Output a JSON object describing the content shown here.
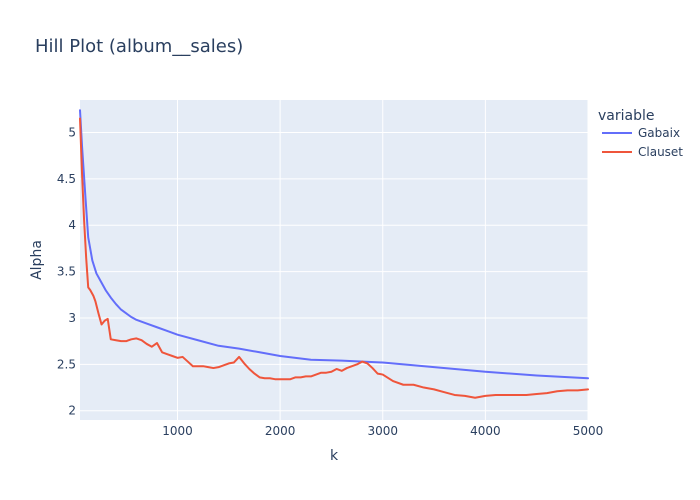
{
  "chart_data": {
    "type": "line",
    "title": "Hill Plot (album__sales)",
    "xlabel": "k",
    "ylabel": "Alpha",
    "xlim": [
      50,
      5000
    ],
    "ylim": [
      1.9,
      5.35
    ],
    "xticks": [
      1000,
      2000,
      3000,
      4000,
      5000
    ],
    "xtick_labels": [
      "1000",
      "2000",
      "3000",
      "4000",
      "5000"
    ],
    "yticks": [
      2,
      2.5,
      3,
      3.5,
      4,
      4.5,
      5
    ],
    "ytick_labels": [
      "2",
      "2.5",
      "3",
      "3.5",
      "4",
      "4.5",
      "5"
    ],
    "grid": true,
    "legend": {
      "title": "variable",
      "placement": "right"
    },
    "series": [
      {
        "name": "Gabaix",
        "color": "#636efa",
        "x": [
          50,
          70,
          100,
          130,
          170,
          210,
          250,
          300,
          350,
          400,
          450,
          500,
          550,
          600,
          700,
          800,
          900,
          1000,
          1200,
          1400,
          1600,
          1800,
          2000,
          2300,
          2600,
          3000,
          3500,
          4000,
          4500,
          5000
        ],
        "y": [
          5.24,
          4.85,
          4.35,
          3.87,
          3.62,
          3.48,
          3.4,
          3.3,
          3.22,
          3.15,
          3.09,
          3.05,
          3.01,
          2.98,
          2.94,
          2.9,
          2.86,
          2.82,
          2.76,
          2.7,
          2.67,
          2.63,
          2.59,
          2.55,
          2.54,
          2.52,
          2.47,
          2.42,
          2.38,
          2.35
        ]
      },
      {
        "name": "Clauset",
        "color": "#ef553b",
        "x": [
          50,
          70,
          90,
          110,
          130,
          150,
          180,
          200,
          230,
          260,
          290,
          320,
          350,
          400,
          450,
          500,
          550,
          600,
          650,
          700,
          750,
          800,
          850,
          900,
          950,
          1000,
          1050,
          1100,
          1150,
          1200,
          1250,
          1300,
          1350,
          1400,
          1450,
          1500,
          1550,
          1600,
          1650,
          1700,
          1750,
          1800,
          1850,
          1900,
          1950,
          2000,
          2050,
          2100,
          2150,
          2200,
          2250,
          2300,
          2350,
          2400,
          2450,
          2500,
          2550,
          2600,
          2650,
          2700,
          2750,
          2800,
          2850,
          2900,
          2950,
          3000,
          3100,
          3200,
          3300,
          3400,
          3500,
          3600,
          3700,
          3800,
          3900,
          4000,
          4100,
          4200,
          4300,
          4400,
          4500,
          4600,
          4700,
          4800,
          4900,
          5000
        ],
        "y": [
          5.15,
          4.55,
          4.05,
          3.65,
          3.33,
          3.3,
          3.24,
          3.18,
          3.05,
          2.93,
          2.97,
          2.99,
          2.77,
          2.76,
          2.75,
          2.75,
          2.77,
          2.78,
          2.76,
          2.72,
          2.69,
          2.73,
          2.63,
          2.61,
          2.59,
          2.57,
          2.58,
          2.53,
          2.48,
          2.48,
          2.48,
          2.47,
          2.46,
          2.47,
          2.49,
          2.51,
          2.52,
          2.58,
          2.51,
          2.45,
          2.4,
          2.36,
          2.35,
          2.35,
          2.34,
          2.34,
          2.34,
          2.34,
          2.36,
          2.36,
          2.37,
          2.37,
          2.39,
          2.41,
          2.41,
          2.42,
          2.45,
          2.43,
          2.46,
          2.48,
          2.5,
          2.53,
          2.51,
          2.46,
          2.4,
          2.39,
          2.32,
          2.28,
          2.28,
          2.25,
          2.23,
          2.2,
          2.17,
          2.16,
          2.14,
          2.16,
          2.17,
          2.17,
          2.17,
          2.17,
          2.18,
          2.19,
          2.21,
          2.22,
          2.22,
          2.23
        ]
      }
    ]
  }
}
